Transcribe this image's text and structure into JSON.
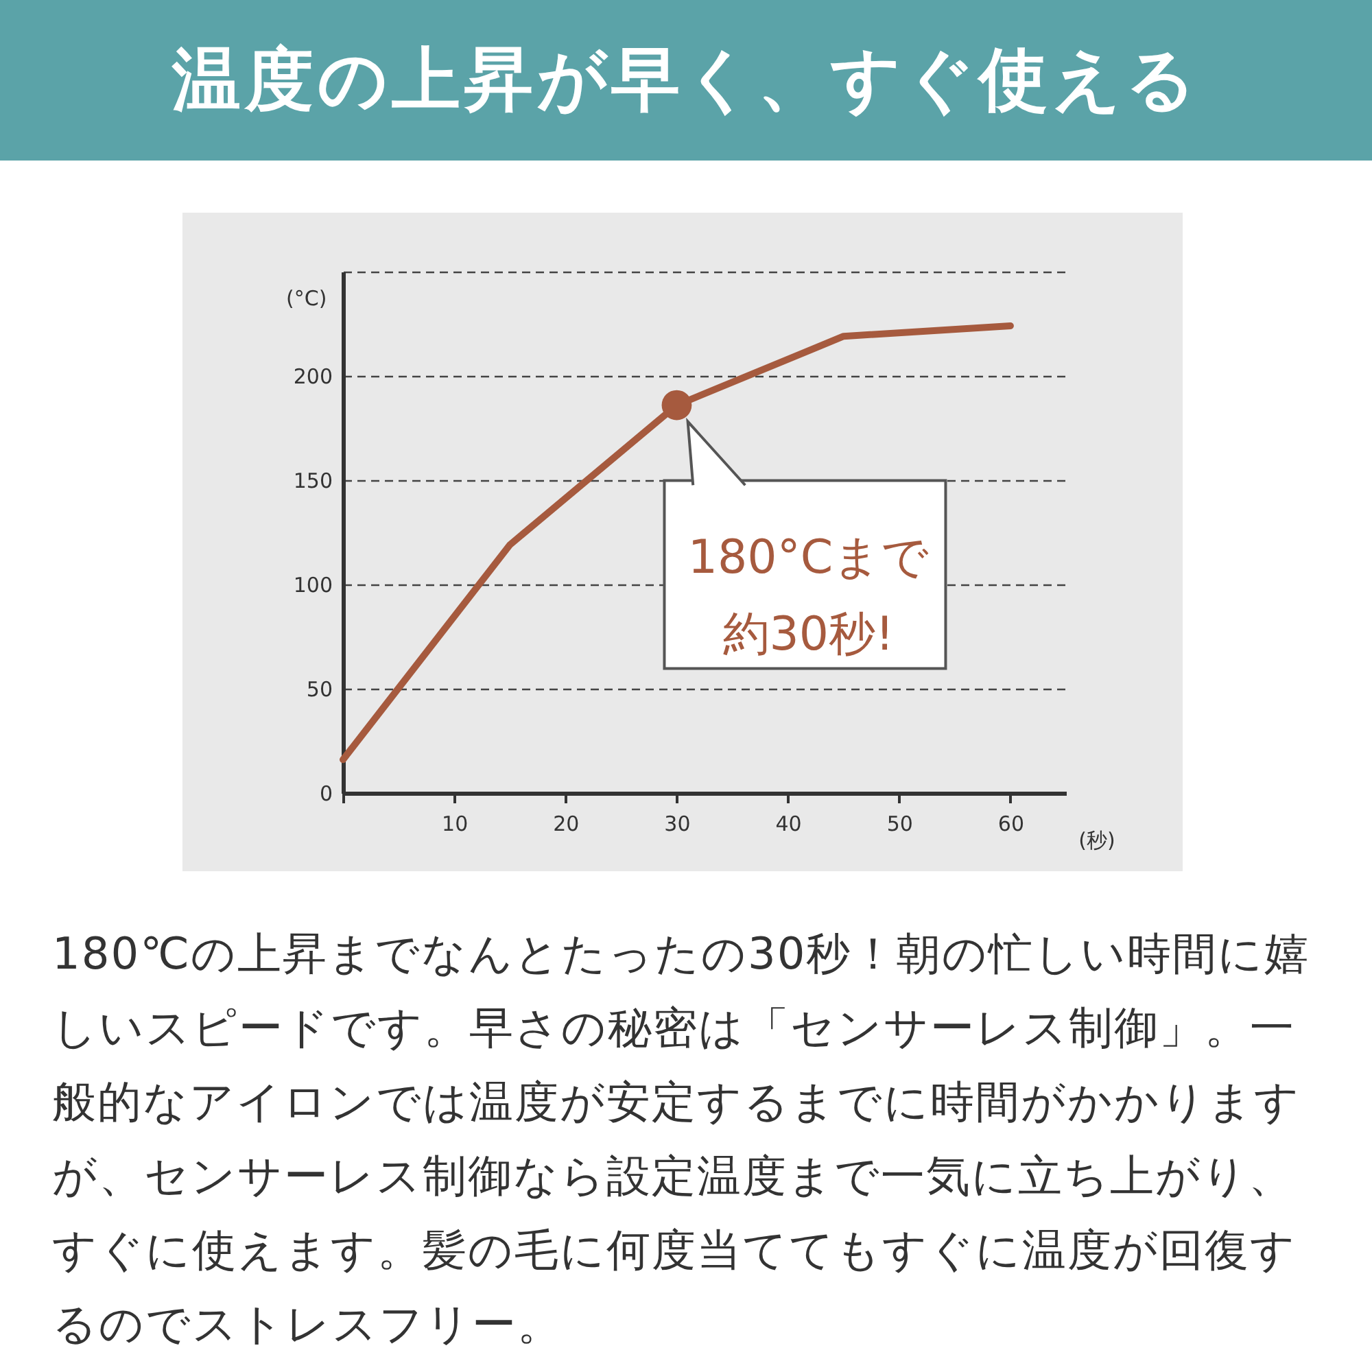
{
  "chart_data": {
    "type": "line",
    "title": "温度の上昇が早く、すぐ使える",
    "xlabel": "(秒)",
    "ylabel": "(°C)",
    "x": [
      0,
      15,
      30,
      45,
      60
    ],
    "series": [
      {
        "color": "#a65a3e",
        "values": [
          16,
          119,
          186,
          219,
          224
        ]
      },
      {
        "type": "scatter",
        "marker": "circle",
        "x": [
          30
        ],
        "values": [
          186
        ],
        "color": "#a65a3e"
      }
    ],
    "xlim": [
      0,
      65
    ],
    "xticks": [
      {
        "value": 0,
        "label": null
      },
      10,
      20,
      30,
      40,
      50,
      60
    ],
    "ylim": [
      0,
      250
    ],
    "yticks": [
      0,
      50,
      100,
      150,
      200,
      {
        "value": 250,
        "label": null
      }
    ],
    "grid": "y",
    "line_style": "solid",
    "annotations": [
      {
        "text": "180°Cまで",
        "x": 30,
        "y": 186
      },
      "約30秒!",
      "180℃の上昇までなんとたったの30秒！朝の忙しい時間に嬉しいスピードです。早さの秘密は「センサーレス制御」。一般的なアイロンでは温度が安定するまでに時間がかかりますが、センサーレス制御なら設定温度まで一気に立ち上がり、すぐに使えます。髪の毛に何度当ててもすぐに温度が回復するのでストレスフリー。"
    ]
  }
}
